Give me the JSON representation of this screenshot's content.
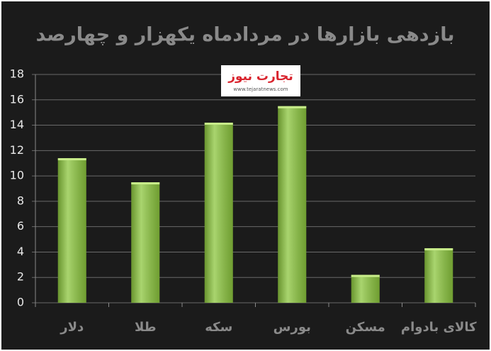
{
  "chart_data": {
    "type": "bar",
    "title": "بازدهی بازارها در مردادماه یکهزار و چهارصد",
    "logo": "تجارت نیوز",
    "logo_url": "www.tejaratnews.com",
    "categories": [
      "دلار",
      "طلا",
      "سکه",
      "بورس",
      "مسکن",
      "کالای بادوام"
    ],
    "values": [
      11.4,
      9.5,
      14.2,
      15.5,
      2.2,
      4.3
    ],
    "color": "#8cc63e",
    "ylim": [
      0,
      18
    ],
    "yticks": [
      0,
      2,
      4,
      6,
      8,
      10,
      12,
      14,
      16,
      18
    ],
    "grid": true
  }
}
